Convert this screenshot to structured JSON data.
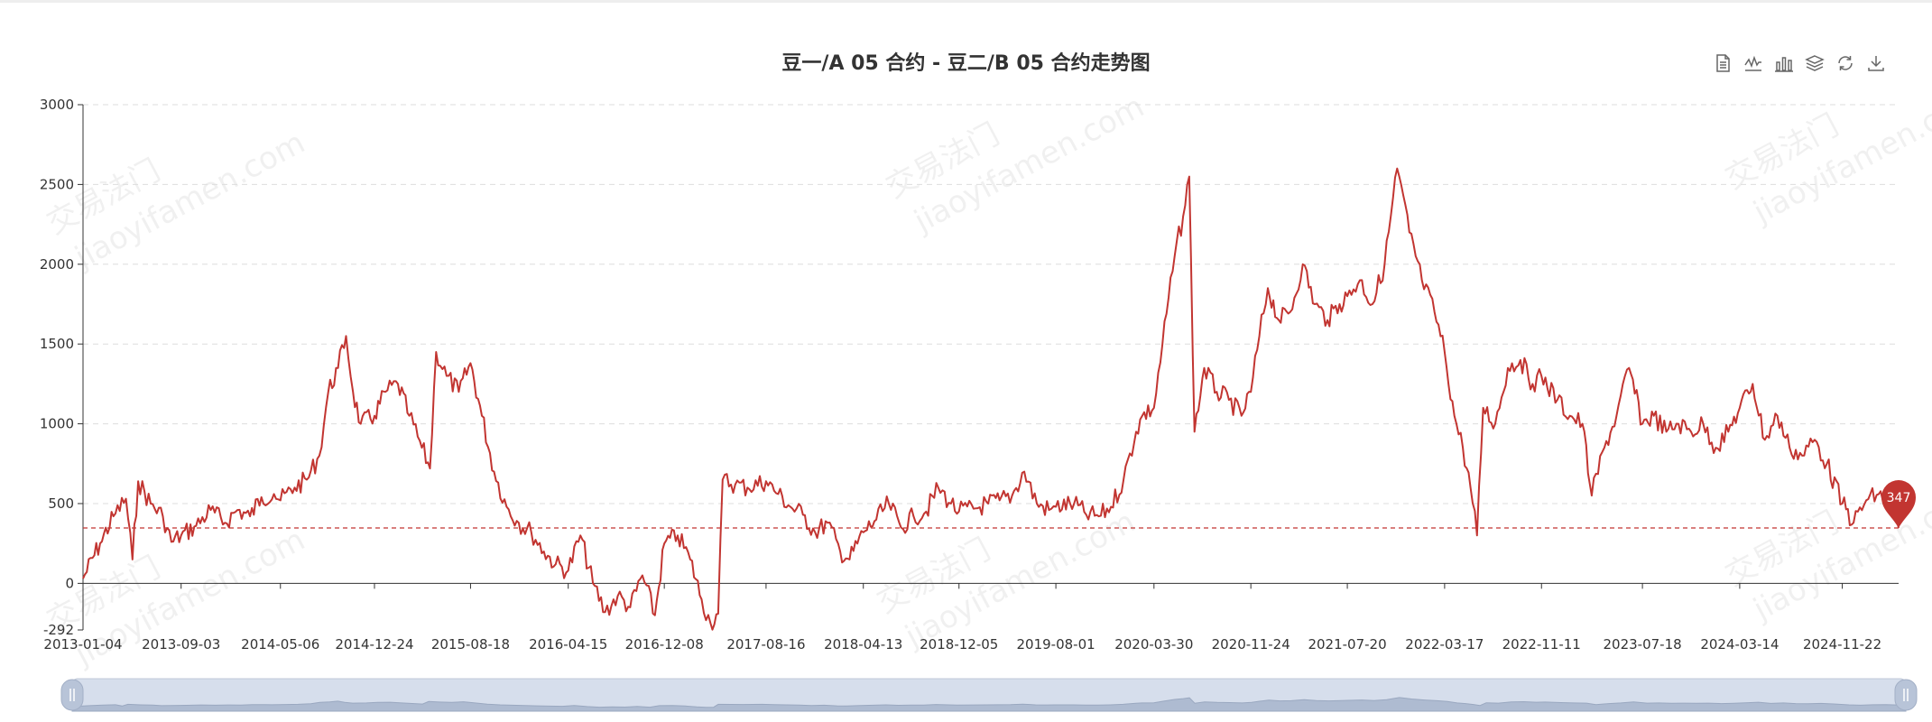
{
  "chart_data": {
    "type": "line",
    "title": "豆一/A 05 合约 - 豆二/B 05 合约走势图",
    "xlabel": "",
    "ylabel": "",
    "ylim": [
      -292,
      3000
    ],
    "y_ticks": [
      "3000",
      "2500",
      "2000",
      "1500",
      "1000",
      "500",
      "0",
      "-292"
    ],
    "x_tick_labels": [
      "2013-01-04",
      "2013-09-03",
      "2014-05-06",
      "2014-12-24",
      "2015-08-18",
      "2016-04-15",
      "2016-12-08",
      "2017-08-16",
      "2018-04-13",
      "2018-12-05",
      "2019-08-01",
      "2020-03-30",
      "2020-11-24",
      "2021-07-20",
      "2022-03-17",
      "2022-11-11",
      "2023-07-18",
      "2024-03-14",
      "2024-11-22"
    ],
    "grid": true,
    "legend": "none",
    "series": [
      {
        "color": "#c23531",
        "points": [
          [
            "2013-01-04",
            30
          ],
          [
            "2013-02-15",
            250
          ],
          [
            "2013-03-20",
            420
          ],
          [
            "2013-04-20",
            530
          ],
          [
            "2013-05-06",
            150
          ],
          [
            "2013-05-20",
            640
          ],
          [
            "2013-06-20",
            500
          ],
          [
            "2013-07-20",
            420
          ],
          [
            "2013-08-10",
            260
          ],
          [
            "2013-09-03",
            300
          ],
          [
            "2013-10-10",
            360
          ],
          [
            "2013-11-15",
            460
          ],
          [
            "2013-12-20",
            380
          ],
          [
            "2014-01-20",
            460
          ],
          [
            "2014-02-20",
            420
          ],
          [
            "2014-03-20",
            540
          ],
          [
            "2014-04-20",
            560
          ],
          [
            "2014-05-06",
            520
          ],
          [
            "2014-06-10",
            600
          ],
          [
            "2014-07-10",
            650
          ],
          [
            "2014-08-10",
            800
          ],
          [
            "2014-09-01",
            1200
          ],
          [
            "2014-09-25",
            1350
          ],
          [
            "2014-10-15",
            1550
          ],
          [
            "2014-11-01",
            1200
          ],
          [
            "2014-11-20",
            1000
          ],
          [
            "2014-12-24",
            1050
          ],
          [
            "2015-01-20",
            1200
          ],
          [
            "2015-02-20",
            1250
          ],
          [
            "2015-03-20",
            1050
          ],
          [
            "2015-04-20",
            850
          ],
          [
            "2015-05-10",
            720
          ],
          [
            "2015-05-25",
            1450
          ],
          [
            "2015-06-20",
            1300
          ],
          [
            "2015-07-20",
            1200
          ],
          [
            "2015-08-18",
            1380
          ],
          [
            "2015-09-15",
            1050
          ],
          [
            "2015-10-15",
            700
          ],
          [
            "2015-11-15",
            480
          ],
          [
            "2015-12-15",
            380
          ],
          [
            "2016-01-15",
            320
          ],
          [
            "2016-02-15",
            200
          ],
          [
            "2016-03-15",
            120
          ],
          [
            "2016-04-15",
            80
          ],
          [
            "2016-05-15",
            300
          ],
          [
            "2016-06-15",
            0
          ],
          [
            "2016-07-15",
            -180
          ],
          [
            "2016-08-15",
            -80
          ],
          [
            "2016-09-15",
            -150
          ],
          [
            "2016-10-15",
            50
          ],
          [
            "2016-11-15",
            -200
          ],
          [
            "2016-12-08",
            250
          ],
          [
            "2017-01-10",
            300
          ],
          [
            "2017-02-10",
            150
          ],
          [
            "2017-03-10",
            -100
          ],
          [
            "2017-04-01",
            -250
          ],
          [
            "2017-04-20",
            -190
          ],
          [
            "2017-05-01",
            650
          ],
          [
            "2017-06-01",
            620
          ],
          [
            "2017-07-01",
            600
          ],
          [
            "2017-08-16",
            640
          ],
          [
            "2017-09-15",
            560
          ],
          [
            "2017-10-15",
            480
          ],
          [
            "2017-11-15",
            430
          ],
          [
            "2017-12-15",
            320
          ],
          [
            "2018-01-15",
            380
          ],
          [
            "2018-02-15",
            200
          ],
          [
            "2018-03-10",
            150
          ],
          [
            "2018-04-13",
            320
          ],
          [
            "2018-05-15",
            400
          ],
          [
            "2018-06-15",
            500
          ],
          [
            "2018-07-15",
            350
          ],
          [
            "2018-08-15",
            420
          ],
          [
            "2018-09-15",
            450
          ],
          [
            "2018-10-15",
            600
          ],
          [
            "2018-11-15",
            500
          ],
          [
            "2018-12-05",
            450
          ],
          [
            "2019-01-15",
            470
          ],
          [
            "2019-02-15",
            500
          ],
          [
            "2019-03-15",
            520
          ],
          [
            "2019-04-15",
            550
          ],
          [
            "2019-05-15",
            700
          ],
          [
            "2019-06-15",
            500
          ],
          [
            "2019-07-15",
            460
          ],
          [
            "2019-08-01",
            480
          ],
          [
            "2019-09-15",
            500
          ],
          [
            "2019-10-15",
            430
          ],
          [
            "2019-11-15",
            420
          ],
          [
            "2019-12-15",
            480
          ],
          [
            "2020-01-15",
            650
          ],
          [
            "2020-02-15",
            950
          ],
          [
            "2020-03-01",
            1050
          ],
          [
            "2020-03-30",
            1100
          ],
          [
            "2020-04-20",
            1500
          ],
          [
            "2020-05-20",
            2050
          ],
          [
            "2020-06-10",
            2300
          ],
          [
            "2020-06-25",
            2550
          ],
          [
            "2020-07-08",
            950
          ],
          [
            "2020-08-01",
            1350
          ],
          [
            "2020-09-01",
            1200
          ],
          [
            "2020-10-01",
            1150
          ],
          [
            "2020-11-01",
            1050
          ],
          [
            "2020-11-24",
            1200
          ],
          [
            "2020-12-15",
            1550
          ],
          [
            "2021-01-05",
            1850
          ],
          [
            "2021-02-01",
            1650
          ],
          [
            "2021-03-01",
            1700
          ],
          [
            "2021-04-01",
            2000
          ],
          [
            "2021-05-01",
            1750
          ],
          [
            "2021-06-01",
            1650
          ],
          [
            "2021-07-01",
            1750
          ],
          [
            "2021-07-20",
            1800
          ],
          [
            "2021-08-20",
            1900
          ],
          [
            "2021-09-20",
            1750
          ],
          [
            "2021-10-20",
            2000
          ],
          [
            "2021-11-20",
            2600
          ],
          [
            "2021-12-20",
            2200
          ],
          [
            "2022-01-20",
            1900
          ],
          [
            "2022-02-20",
            1700
          ],
          [
            "2022-03-17",
            1450
          ],
          [
            "2022-04-10",
            1050
          ],
          [
            "2022-05-01",
            850
          ],
          [
            "2022-05-20",
            600
          ],
          [
            "2022-06-05",
            300
          ],
          [
            "2022-06-20",
            1100
          ],
          [
            "2022-07-20",
            1000
          ],
          [
            "2022-08-20",
            1350
          ],
          [
            "2022-09-20",
            1400
          ],
          [
            "2022-10-20",
            1250
          ],
          [
            "2022-11-11",
            1300
          ],
          [
            "2022-12-20",
            1150
          ],
          [
            "2023-01-20",
            1050
          ],
          [
            "2023-02-20",
            1000
          ],
          [
            "2023-03-15",
            550
          ],
          [
            "2023-04-15",
            850
          ],
          [
            "2023-05-15",
            1050
          ],
          [
            "2023-06-15",
            1350
          ],
          [
            "2023-07-18",
            1000
          ],
          [
            "2023-08-15",
            1050
          ],
          [
            "2023-09-15",
            950
          ],
          [
            "2023-10-15",
            1000
          ],
          [
            "2023-11-15",
            950
          ],
          [
            "2023-12-15",
            1000
          ],
          [
            "2024-01-15",
            850
          ],
          [
            "2024-02-15",
            950
          ],
          [
            "2024-03-14",
            1100
          ],
          [
            "2024-04-15",
            1250
          ],
          [
            "2024-05-15",
            900
          ],
          [
            "2024-06-15",
            1050
          ],
          [
            "2024-07-15",
            850
          ],
          [
            "2024-08-15",
            800
          ],
          [
            "2024-09-15",
            900
          ],
          [
            "2024-10-15",
            750
          ],
          [
            "2024-11-22",
            500
          ],
          [
            "2024-12-20",
            380
          ],
          [
            "2025-01-20",
            520
          ],
          [
            "2025-02-20",
            560
          ],
          [
            "2025-03-20",
            470
          ],
          [
            "2025-04-10",
            347
          ]
        ]
      }
    ],
    "reference_line": {
      "value": 347,
      "style": "dashed"
    },
    "last_value_label": "347",
    "watermark_lines": [
      "交易法门",
      "jiaoyifamen.com"
    ]
  },
  "toolbox": {
    "icons": [
      "data-view-icon",
      "line-chart-icon",
      "bar-chart-icon",
      "stack-icon",
      "restore-icon",
      "download-icon"
    ]
  }
}
